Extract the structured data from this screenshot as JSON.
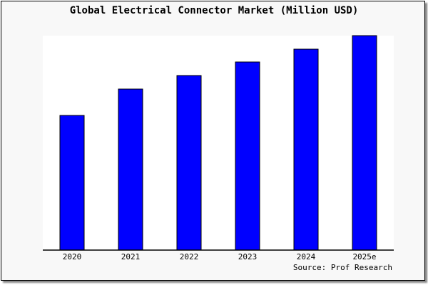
{
  "chart_data": {
    "type": "bar",
    "title": "Global Electrical Connector Market (Million USD)",
    "categories": [
      "2020",
      "2021",
      "2022",
      "2023",
      "2024",
      "2025e"
    ],
    "values": [
      189,
      226,
      245,
      264,
      282,
      301
    ],
    "xlabel": "",
    "ylabel": "",
    "ylim": [
      0,
      301
    ],
    "grid": false,
    "bar_color": "#0000ff",
    "source": "Source: Prof Research"
  }
}
